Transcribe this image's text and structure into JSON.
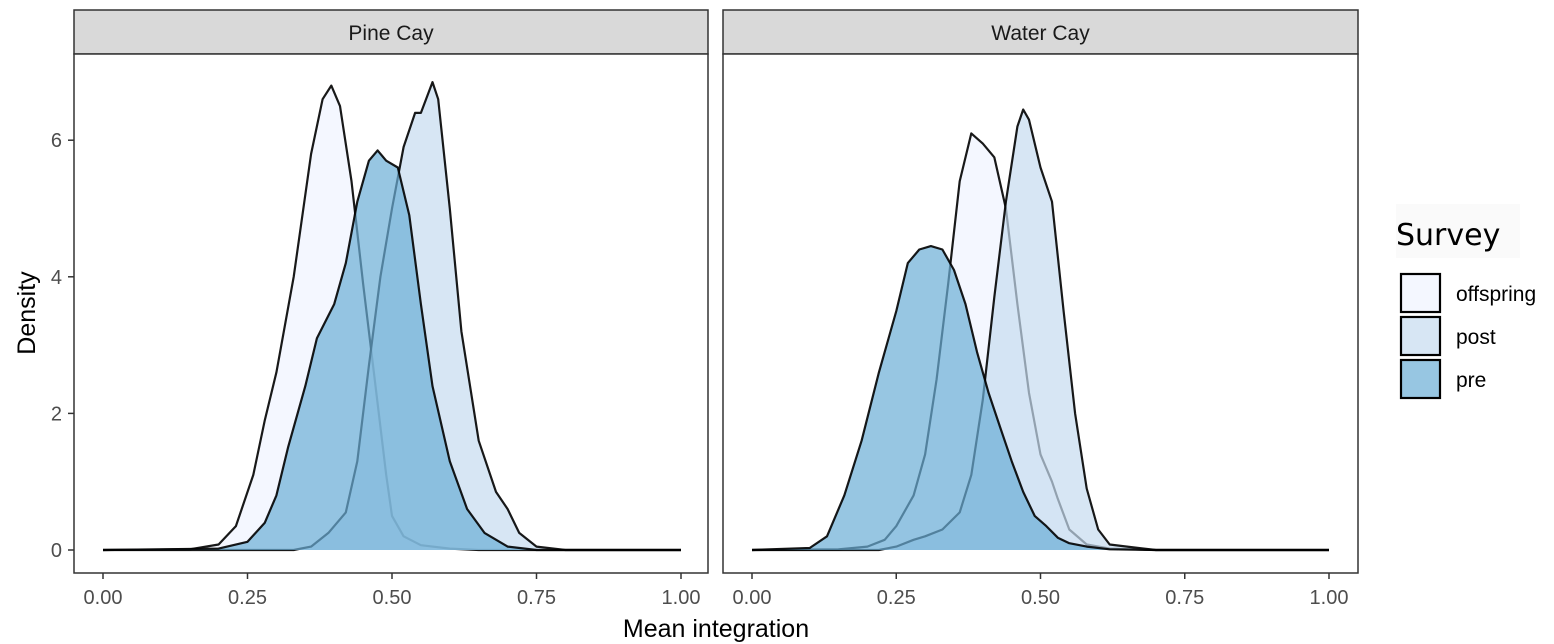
{
  "chart_data": {
    "type": "area",
    "xlabel": "Mean integration",
    "ylabel": "Density",
    "xlim": [
      0,
      1
    ],
    "ylim": [
      0,
      7.2
    ],
    "x_ticks": [
      "0.00",
      "0.25",
      "0.50",
      "0.75",
      "1.00"
    ],
    "y_ticks": [
      "0",
      "2",
      "4",
      "6"
    ],
    "x_tick_values": [
      0,
      0.25,
      0.5,
      0.75,
      1.0
    ],
    "y_tick_values": [
      0,
      2,
      4,
      6
    ],
    "grid": false,
    "legend": {
      "title": "Survey",
      "position": "right",
      "entries": [
        "offspring",
        "post",
        "pre"
      ]
    },
    "colors": {
      "offspring": "#eff3ff",
      "post": "#c6dbef",
      "pre": "#6baed6"
    },
    "opacity": 0.7,
    "panels": [
      {
        "label": "Pine Cay",
        "series": [
          {
            "name": "offspring",
            "points": [
              [
                0,
                0
              ],
              [
                0.15,
                0.01
              ],
              [
                0.2,
                0.08
              ],
              [
                0.23,
                0.35
              ],
              [
                0.26,
                1.1
              ],
              [
                0.28,
                1.9
              ],
              [
                0.3,
                2.6
              ],
              [
                0.33,
                4.0
              ],
              [
                0.36,
                5.8
              ],
              [
                0.38,
                6.6
              ],
              [
                0.395,
                6.8
              ],
              [
                0.41,
                6.5
              ],
              [
                0.43,
                5.4
              ],
              [
                0.45,
                3.9
              ],
              [
                0.47,
                2.5
              ],
              [
                0.49,
                1.1
              ],
              [
                0.5,
                0.5
              ],
              [
                0.52,
                0.2
              ],
              [
                0.55,
                0.07
              ],
              [
                0.6,
                0.02
              ],
              [
                0.65,
                0
              ],
              [
                1,
                0
              ]
            ]
          },
          {
            "name": "post",
            "points": [
              [
                0,
                0
              ],
              [
                0.33,
                0
              ],
              [
                0.36,
                0.05
              ],
              [
                0.39,
                0.25
              ],
              [
                0.42,
                0.55
              ],
              [
                0.44,
                1.3
              ],
              [
                0.46,
                2.7
              ],
              [
                0.48,
                4.0
              ],
              [
                0.5,
                5.0
              ],
              [
                0.52,
                5.9
              ],
              [
                0.54,
                6.4
              ],
              [
                0.55,
                6.4
              ],
              [
                0.57,
                6.85
              ],
              [
                0.58,
                6.6
              ],
              [
                0.6,
                5.0
              ],
              [
                0.62,
                3.2
              ],
              [
                0.65,
                1.6
              ],
              [
                0.68,
                0.85
              ],
              [
                0.7,
                0.6
              ],
              [
                0.72,
                0.25
              ],
              [
                0.75,
                0.05
              ],
              [
                0.8,
                0
              ],
              [
                1,
                0
              ]
            ]
          },
          {
            "name": "pre",
            "points": [
              [
                0,
                0
              ],
              [
                0.2,
                0.02
              ],
              [
                0.25,
                0.12
              ],
              [
                0.28,
                0.4
              ],
              [
                0.3,
                0.8
              ],
              [
                0.32,
                1.5
              ],
              [
                0.35,
                2.4
              ],
              [
                0.37,
                3.1
              ],
              [
                0.4,
                3.6
              ],
              [
                0.42,
                4.2
              ],
              [
                0.44,
                5.1
              ],
              [
                0.46,
                5.7
              ],
              [
                0.475,
                5.85
              ],
              [
                0.49,
                5.7
              ],
              [
                0.51,
                5.6
              ],
              [
                0.53,
                4.9
              ],
              [
                0.55,
                3.6
              ],
              [
                0.57,
                2.4
              ],
              [
                0.6,
                1.3
              ],
              [
                0.63,
                0.6
              ],
              [
                0.66,
                0.25
              ],
              [
                0.7,
                0.05
              ],
              [
                0.75,
                0
              ],
              [
                1,
                0
              ]
            ]
          }
        ]
      },
      {
        "label": "Water Cay",
        "series": [
          {
            "name": "offspring",
            "points": [
              [
                0,
                0
              ],
              [
                0.15,
                0.01
              ],
              [
                0.2,
                0.05
              ],
              [
                0.23,
                0.15
              ],
              [
                0.25,
                0.35
              ],
              [
                0.28,
                0.8
              ],
              [
                0.3,
                1.4
              ],
              [
                0.32,
                2.5
              ],
              [
                0.34,
                3.9
              ],
              [
                0.36,
                5.4
              ],
              [
                0.38,
                6.1
              ],
              [
                0.4,
                5.95
              ],
              [
                0.42,
                5.75
              ],
              [
                0.44,
                5.0
              ],
              [
                0.46,
                3.6
              ],
              [
                0.48,
                2.3
              ],
              [
                0.5,
                1.4
              ],
              [
                0.52,
                1.0
              ],
              [
                0.53,
                0.75
              ],
              [
                0.55,
                0.3
              ],
              [
                0.58,
                0.08
              ],
              [
                0.62,
                0.02
              ],
              [
                0.7,
                0
              ],
              [
                1,
                0
              ]
            ]
          },
          {
            "name": "post",
            "points": [
              [
                0,
                0
              ],
              [
                0.22,
                0
              ],
              [
                0.25,
                0.05
              ],
              [
                0.28,
                0.15
              ],
              [
                0.3,
                0.2
              ],
              [
                0.33,
                0.3
              ],
              [
                0.36,
                0.55
              ],
              [
                0.38,
                1.1
              ],
              [
                0.4,
                2.2
              ],
              [
                0.42,
                3.7
              ],
              [
                0.44,
                5.1
              ],
              [
                0.46,
                6.2
              ],
              [
                0.47,
                6.45
              ],
              [
                0.48,
                6.3
              ],
              [
                0.5,
                5.6
              ],
              [
                0.52,
                5.1
              ],
              [
                0.54,
                3.5
              ],
              [
                0.56,
                2.0
              ],
              [
                0.58,
                0.9
              ],
              [
                0.6,
                0.3
              ],
              [
                0.62,
                0.08
              ],
              [
                0.65,
                0.05
              ],
              [
                0.7,
                0
              ],
              [
                1,
                0
              ]
            ]
          },
          {
            "name": "pre",
            "points": [
              [
                0,
                0
              ],
              [
                0.1,
                0.03
              ],
              [
                0.13,
                0.2
              ],
              [
                0.16,
                0.8
              ],
              [
                0.19,
                1.6
              ],
              [
                0.22,
                2.6
              ],
              [
                0.25,
                3.5
              ],
              [
                0.27,
                4.2
              ],
              [
                0.29,
                4.4
              ],
              [
                0.31,
                4.45
              ],
              [
                0.33,
                4.4
              ],
              [
                0.35,
                4.1
              ],
              [
                0.37,
                3.6
              ],
              [
                0.39,
                2.9
              ],
              [
                0.41,
                2.3
              ],
              [
                0.43,
                1.8
              ],
              [
                0.45,
                1.3
              ],
              [
                0.47,
                0.85
              ],
              [
                0.49,
                0.5
              ],
              [
                0.51,
                0.35
              ],
              [
                0.53,
                0.18
              ],
              [
                0.55,
                0.1
              ],
              [
                0.58,
                0.05
              ],
              [
                0.62,
                0.01
              ],
              [
                0.7,
                0
              ],
              [
                1,
                0
              ]
            ]
          }
        ]
      }
    ]
  }
}
